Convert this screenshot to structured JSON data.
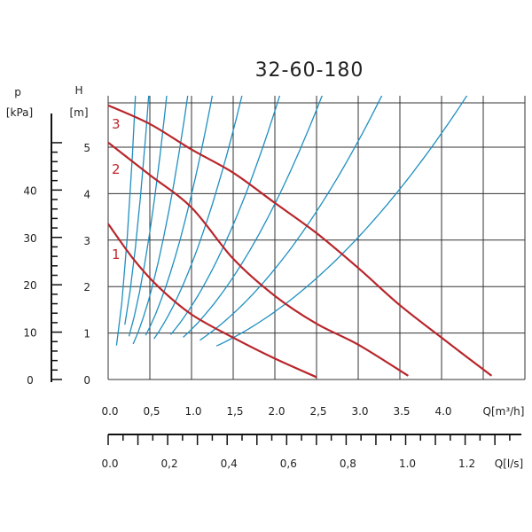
{
  "chart_data": {
    "type": "line",
    "title": "32-60-180",
    "h_axis": {
      "label": "H",
      "unit": "[m]",
      "ticks": [
        "0",
        "1",
        "2",
        "3",
        "4",
        "5"
      ],
      "ylim": [
        0,
        5.8
      ]
    },
    "p_axis": {
      "label": "p",
      "unit": "[kPa]",
      "ticks": [
        "0",
        "10",
        "20",
        "30",
        "40"
      ],
      "ylim": [
        0,
        56.9
      ]
    },
    "q_m3h_axis": {
      "label": "Q[m³/h]",
      "ticks": [
        "0.0",
        "0,5",
        "1.0",
        "1,5",
        "2.0",
        "2,5",
        "3.0",
        "3.5",
        "4.0"
      ],
      "xlim": [
        0,
        5.0
      ]
    },
    "q_ls_axis": {
      "label": "Q[l/s]",
      "ticks": [
        "0.0",
        "0,2",
        "0,4",
        "0,6",
        "0,8",
        "1.0",
        "1.2"
      ],
      "xlim": [
        0,
        1.389
      ]
    },
    "grid": true,
    "series": [
      {
        "name": "1",
        "points": [
          [
            0,
            3.35
          ],
          [
            0.3,
            2.6
          ],
          [
            0.6,
            2.0
          ],
          [
            1.0,
            1.4
          ],
          [
            1.5,
            0.9
          ],
          [
            2.0,
            0.45
          ],
          [
            2.5,
            0.05
          ]
        ]
      },
      {
        "name": "2",
        "points": [
          [
            0,
            5.1
          ],
          [
            0.5,
            4.4
          ],
          [
            1.0,
            3.7
          ],
          [
            1.5,
            2.6
          ],
          [
            2.0,
            1.8
          ],
          [
            2.5,
            1.2
          ],
          [
            3.0,
            0.75
          ],
          [
            3.6,
            0.08
          ]
        ]
      },
      {
        "name": "3",
        "points": [
          [
            0,
            5.9
          ],
          [
            0.5,
            5.5
          ],
          [
            1.0,
            4.95
          ],
          [
            1.5,
            4.45
          ],
          [
            2.0,
            3.8
          ],
          [
            2.5,
            3.15
          ],
          [
            3.0,
            2.4
          ],
          [
            3.5,
            1.6
          ],
          [
            4.0,
            0.9
          ],
          [
            4.6,
            0.08
          ]
        ]
      }
    ],
    "system_curves": {
      "k": [
        55,
        25,
        12,
        6.5,
        3.8,
        2.3,
        1.4,
        0.9,
        0.55,
        0.32
      ],
      "q_start": [
        0.1,
        0.2,
        0.25,
        0.3,
        0.45,
        0.55,
        0.75,
        0.9,
        1.1,
        1.3
      ]
    },
    "colors": {
      "pump_curve": "#b8262b",
      "system_curve": "#1f8fc0",
      "grid": "#333333"
    }
  }
}
